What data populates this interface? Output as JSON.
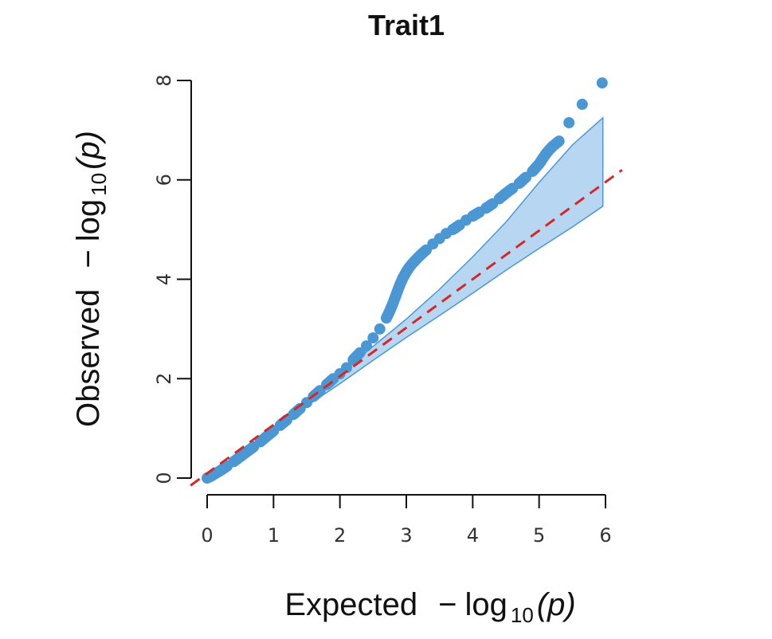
{
  "chart_data": {
    "type": "scatter",
    "title": "Trait1",
    "xlabel": {
      "prefix": "Expected",
      "minus": "−",
      "fn": "log",
      "sub": "10",
      "arg": "(p)"
    },
    "ylabel": {
      "prefix": "Observed",
      "minus": "−",
      "fn": "log",
      "sub": "10",
      "arg": "(p)"
    },
    "xlim": [
      0,
      6
    ],
    "ylim": [
      0,
      8
    ],
    "x_ticks": [
      0,
      1,
      2,
      3,
      4,
      5,
      6
    ],
    "y_ticks": [
      0,
      2,
      4,
      6,
      8
    ],
    "grid": false,
    "colors": {
      "points": "#4a97d4",
      "reference_line": "#d62728",
      "confidence_band_fill": "#9fc8ec",
      "confidence_band_edge": "#4a97d4"
    },
    "reference_line": {
      "type": "identity",
      "style": "dashed",
      "from": [
        -0.25,
        -0.15
      ],
      "to": [
        6.25,
        6.2
      ]
    },
    "confidence_band": {
      "x": [
        1.5,
        2.0,
        2.5,
        3.0,
        3.5,
        4.0,
        4.5,
        5.0,
        5.5,
        5.96
      ],
      "upper": [
        1.55,
        2.1,
        2.65,
        3.2,
        3.8,
        4.45,
        5.15,
        5.95,
        6.7,
        7.25
      ],
      "lower": [
        1.45,
        1.9,
        2.37,
        2.83,
        3.27,
        3.72,
        4.18,
        4.62,
        5.05,
        5.47
      ]
    },
    "series": [
      {
        "x": [
          0.0,
          0.05,
          0.1,
          0.15,
          0.2,
          0.3,
          0.4,
          0.5,
          0.6,
          0.7,
          0.8,
          0.9,
          1.0,
          1.1,
          1.2,
          1.3,
          1.4,
          1.5,
          1.6,
          1.7,
          1.8,
          1.9,
          2.0,
          2.1,
          2.2,
          2.3,
          2.4,
          2.5,
          2.6,
          2.7,
          2.75,
          2.8,
          2.85,
          2.9,
          2.95,
          3.0,
          3.05,
          3.1,
          3.15,
          3.2,
          3.3,
          3.4,
          3.5,
          3.6,
          3.7,
          3.8,
          3.9,
          4.0,
          4.1,
          4.2,
          4.3,
          4.4,
          4.5,
          4.6,
          4.7,
          4.8,
          4.9,
          5.0,
          5.05,
          5.1,
          5.15,
          5.2,
          5.3,
          5.45,
          5.65,
          5.95
        ],
        "y": [
          0.0,
          0.03,
          0.07,
          0.11,
          0.15,
          0.24,
          0.33,
          0.43,
          0.53,
          0.63,
          0.73,
          0.84,
          0.95,
          1.06,
          1.17,
          1.28,
          1.4,
          1.52,
          1.64,
          1.76,
          1.88,
          2.0,
          2.1,
          2.22,
          2.38,
          2.52,
          2.66,
          2.82,
          3.0,
          3.22,
          3.36,
          3.52,
          3.7,
          3.88,
          4.03,
          4.15,
          4.25,
          4.33,
          4.4,
          4.47,
          4.59,
          4.71,
          4.82,
          4.92,
          5.0,
          5.09,
          5.19,
          5.27,
          5.35,
          5.43,
          5.52,
          5.62,
          5.73,
          5.83,
          5.93,
          6.05,
          6.17,
          6.32,
          6.42,
          6.52,
          6.6,
          6.67,
          6.78,
          7.15,
          7.52,
          7.95
        ]
      }
    ]
  }
}
